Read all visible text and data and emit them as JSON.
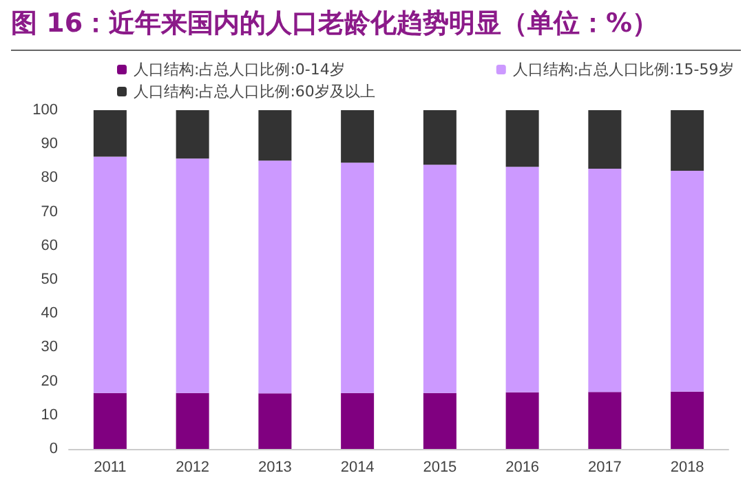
{
  "chart_data": {
    "type": "bar",
    "title": "图 16：近年来国内的人口老龄化趋势明显（单位：%）",
    "categories": [
      "2011",
      "2012",
      "2013",
      "2014",
      "2015",
      "2016",
      "2017",
      "2018"
    ],
    "stacked": true,
    "series": [
      {
        "name": "人口结构:占总人口比例:0-14岁",
        "color": "#800080",
        "values": [
          16.5,
          16.5,
          16.4,
          16.5,
          16.5,
          16.7,
          16.8,
          16.9
        ]
      },
      {
        "name": "人口结构:占总人口比例:15-59岁",
        "color": "#cc99ff",
        "values": [
          69.8,
          69.2,
          68.7,
          68.0,
          67.4,
          66.6,
          65.9,
          65.2
        ]
      },
      {
        "name": "人口结构:占总人口比例:60岁及以上",
        "color": "#333333",
        "values": [
          13.7,
          14.3,
          14.9,
          15.5,
          16.1,
          16.7,
          17.3,
          17.9
        ]
      }
    ],
    "ylim": [
      0,
      100
    ],
    "yticks": [
      0,
      10,
      20,
      30,
      40,
      50,
      60,
      70,
      80,
      90,
      100
    ],
    "grid": false,
    "legend": "top"
  }
}
